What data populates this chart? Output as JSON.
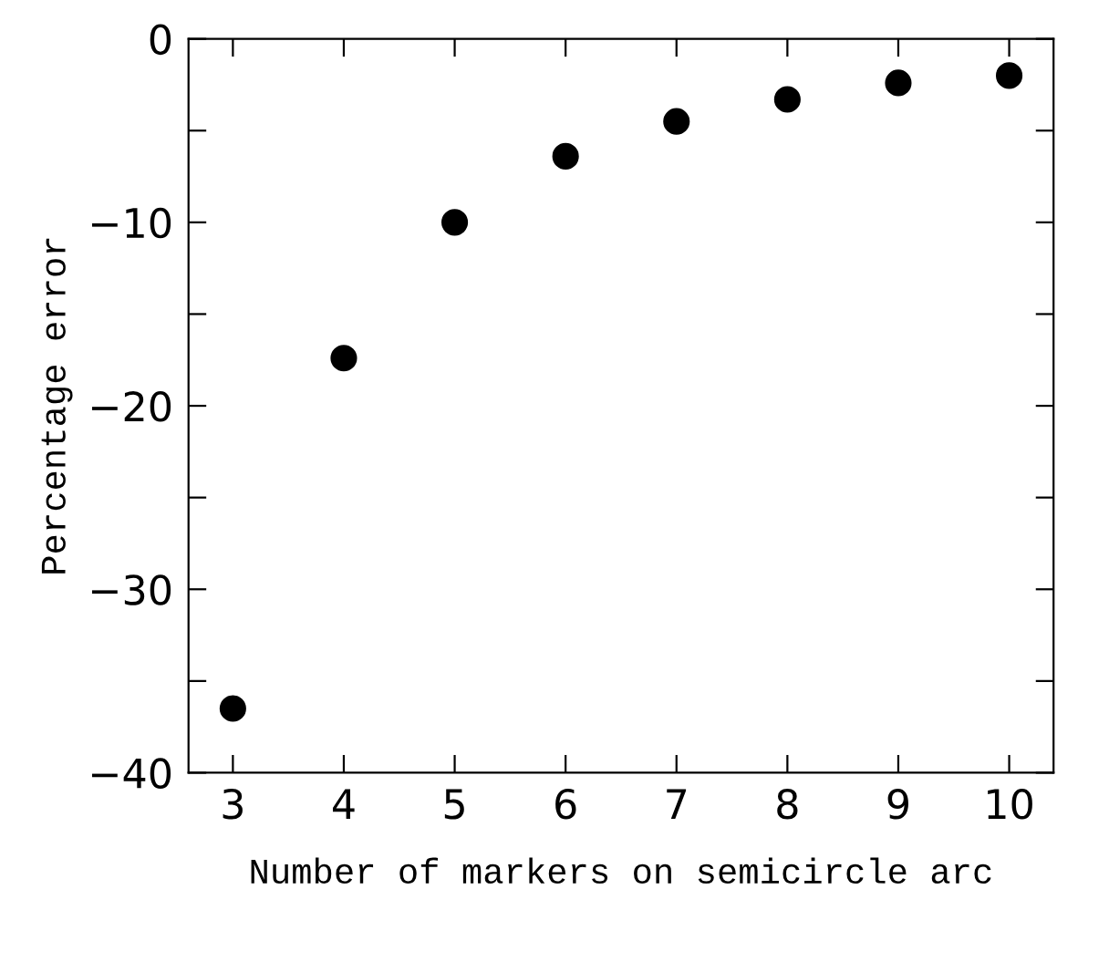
{
  "chart_data": {
    "type": "scatter",
    "xlabel": "Number of markers on semicircle arc",
    "ylabel": "Percentage error",
    "x": [
      3,
      4,
      5,
      6,
      7,
      8,
      9,
      10
    ],
    "series": [
      {
        "color": "#000000",
        "values": [
          -36.5,
          -17.4,
          -10.0,
          -6.4,
          -4.5,
          -3.3,
          -2.4,
          -2.0
        ]
      }
    ],
    "xlim": [
      2.6,
      10.4
    ],
    "xticks": [
      3,
      4,
      5,
      6,
      7,
      8,
      9,
      10
    ],
    "ylim": [
      -40,
      0
    ],
    "yticks": [
      -40,
      {
        "value": -35,
        "label": null
      },
      -30,
      {
        "value": -25,
        "label": null
      },
      -20,
      {
        "value": -15,
        "label": null
      },
      -10,
      {
        "value": -5,
        "label": null
      },
      0
    ],
    "marker": "circle",
    "grid": false,
    "legend": false
  }
}
